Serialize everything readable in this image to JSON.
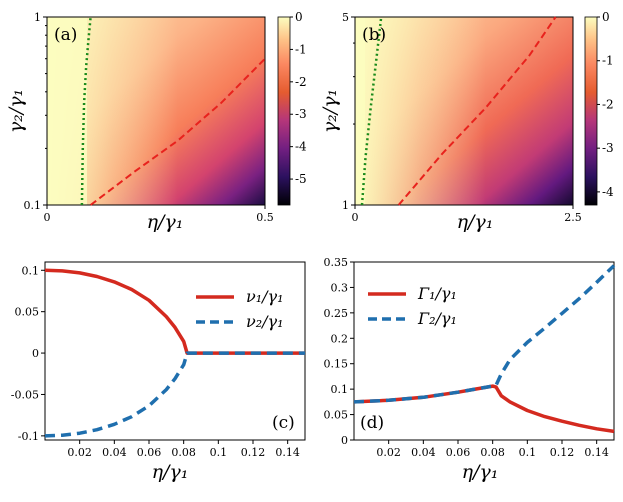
{
  "chart_data": [
    {
      "id": "a",
      "type": "heatmap",
      "panel_label": "(a)",
      "xlabel": "η/γ₁",
      "ylabel": "γ₂/γ₁",
      "xlim": [
        0,
        0.5
      ],
      "ylim": [
        0.1,
        1
      ],
      "yscale": "log",
      "xticks": [
        {
          "v": 0,
          "t": "0"
        },
        {
          "v": 0.5,
          "t": "0.5"
        }
      ],
      "yticks": [
        {
          "v": 0.1,
          "t": "0.1"
        },
        {
          "v": 1,
          "t": "1"
        }
      ],
      "colorbar": {
        "range": [
          -5.8,
          0
        ],
        "ticks": [
          0,
          -1,
          -2,
          -3,
          -4,
          -5
        ],
        "labels": [
          "0",
          "-1",
          "-2",
          "-3",
          "-4",
          "-5"
        ]
      },
      "green_boundary": {
        "x": [
          0.08,
          0.082,
          0.085,
          0.09,
          0.095,
          0.1
        ],
        "y": [
          0.1,
          0.2,
          0.35,
          0.55,
          0.75,
          1.0
        ]
      },
      "red_boundary": {
        "x": [
          0.1,
          0.2,
          0.3,
          0.4,
          0.5
        ],
        "y": [
          0.1,
          0.15,
          0.22,
          0.35,
          0.6
        ]
      }
    },
    {
      "id": "b",
      "type": "heatmap",
      "panel_label": "(b)",
      "xlabel": "η/γ₁",
      "ylabel": "γ₂/γ₁",
      "xlim": [
        0,
        2.5
      ],
      "ylim": [
        1,
        5
      ],
      "yscale": "log",
      "xticks": [
        {
          "v": 0,
          "t": "0"
        },
        {
          "v": 2.5,
          "t": "2.5"
        }
      ],
      "yticks": [
        {
          "v": 1,
          "t": "1"
        },
        {
          "v": 5,
          "t": "5"
        }
      ],
      "colorbar": {
        "range": [
          -4.3,
          0
        ],
        "ticks": [
          0,
          -1,
          -2,
          -3,
          -4
        ],
        "labels": [
          "0",
          "-1",
          "-2",
          "-3",
          "-4"
        ]
      },
      "green_boundary": {
        "x": [
          0.08,
          0.12,
          0.18,
          0.25,
          0.3
        ],
        "y": [
          1.0,
          1.5,
          2.3,
          3.6,
          5.0
        ]
      },
      "red_boundary": {
        "x": [
          0.5,
          1.0,
          1.5,
          2.0,
          2.3
        ],
        "y": [
          1.0,
          1.55,
          2.3,
          3.6,
          5.0
        ]
      }
    },
    {
      "id": "c",
      "type": "line",
      "panel_label": "(c)",
      "xlabel": "η/γ₁",
      "xlim": [
        0,
        0.15
      ],
      "ylim": [
        -0.105,
        0.11
      ],
      "xticks": [
        {
          "v": 0.02,
          "t": "0.02"
        },
        {
          "v": 0.04,
          "t": "0.04"
        },
        {
          "v": 0.06,
          "t": "0.06"
        },
        {
          "v": 0.08,
          "t": "0.08"
        },
        {
          "v": 0.1,
          "t": "0.1"
        },
        {
          "v": 0.12,
          "t": "0.12"
        },
        {
          "v": 0.14,
          "t": "0.14"
        }
      ],
      "yticks": [
        {
          "v": -0.1,
          "t": "-0.1"
        },
        {
          "v": -0.05,
          "t": "-0.05"
        },
        {
          "v": 0,
          "t": "0"
        },
        {
          "v": 0.05,
          "t": "0.05"
        },
        {
          "v": 0.1,
          "t": "0.1"
        }
      ],
      "series": [
        {
          "name": "ν₁/γ₁",
          "style": "solid",
          "color": "#d42a1f",
          "x": [
            0,
            0.01,
            0.02,
            0.03,
            0.04,
            0.05,
            0.06,
            0.07,
            0.075,
            0.08,
            0.082,
            0.15
          ],
          "y": [
            0.1,
            0.0992,
            0.0968,
            0.0925,
            0.086,
            0.0768,
            0.0637,
            0.0441,
            0.031,
            0.0141,
            0,
            0
          ]
        },
        {
          "name": "ν₂/γ₁",
          "style": "dashed",
          "color": "#1f6fae",
          "x": [
            0,
            0.01,
            0.02,
            0.03,
            0.04,
            0.05,
            0.06,
            0.07,
            0.075,
            0.08,
            0.082,
            0.15
          ],
          "y": [
            -0.1,
            -0.0992,
            -0.0968,
            -0.0925,
            -0.086,
            -0.0768,
            -0.0637,
            -0.0441,
            -0.031,
            -0.0141,
            0,
            0
          ]
        }
      ]
    },
    {
      "id": "d",
      "type": "line",
      "panel_label": "(d)",
      "xlabel": "η/γ₁",
      "xlim": [
        0,
        0.15
      ],
      "ylim": [
        0,
        0.35
      ],
      "xticks": [
        {
          "v": 0.02,
          "t": "0.02"
        },
        {
          "v": 0.04,
          "t": "0.04"
        },
        {
          "v": 0.06,
          "t": "0.06"
        },
        {
          "v": 0.08,
          "t": "0.08"
        },
        {
          "v": 0.1,
          "t": "0.1"
        },
        {
          "v": 0.12,
          "t": "0.12"
        },
        {
          "v": 0.14,
          "t": "0.14"
        }
      ],
      "yticks": [
        {
          "v": 0,
          "t": "0"
        },
        {
          "v": 0.05,
          "t": "0.05"
        },
        {
          "v": 0.1,
          "t": "0.1"
        },
        {
          "v": 0.15,
          "t": "0.15"
        },
        {
          "v": 0.2,
          "t": "0.2"
        },
        {
          "v": 0.25,
          "t": "0.25"
        },
        {
          "v": 0.3,
          "t": "0.3"
        },
        {
          "v": 0.35,
          "t": "0.35"
        }
      ],
      "series": [
        {
          "name": "Γ₁/γ₁",
          "style": "solid",
          "color": "#d42a1f",
          "x": [
            0,
            0.02,
            0.04,
            0.06,
            0.07,
            0.08,
            0.082,
            0.085,
            0.09,
            0.1,
            0.11,
            0.12,
            0.13,
            0.14,
            0.15
          ],
          "y": [
            0.075,
            0.078,
            0.084,
            0.094,
            0.1,
            0.106,
            0.104,
            0.087,
            0.075,
            0.058,
            0.046,
            0.037,
            0.029,
            0.022,
            0.017
          ]
        },
        {
          "name": "Γ₂/γ₁",
          "style": "dashed",
          "color": "#1f6fae",
          "x": [
            0,
            0.02,
            0.04,
            0.06,
            0.07,
            0.08,
            0.082,
            0.085,
            0.09,
            0.1,
            0.11,
            0.12,
            0.13,
            0.14,
            0.15
          ],
          "y": [
            0.075,
            0.078,
            0.084,
            0.094,
            0.1,
            0.106,
            0.108,
            0.13,
            0.158,
            0.192,
            0.22,
            0.249,
            0.278,
            0.31,
            0.343
          ]
        }
      ]
    }
  ]
}
